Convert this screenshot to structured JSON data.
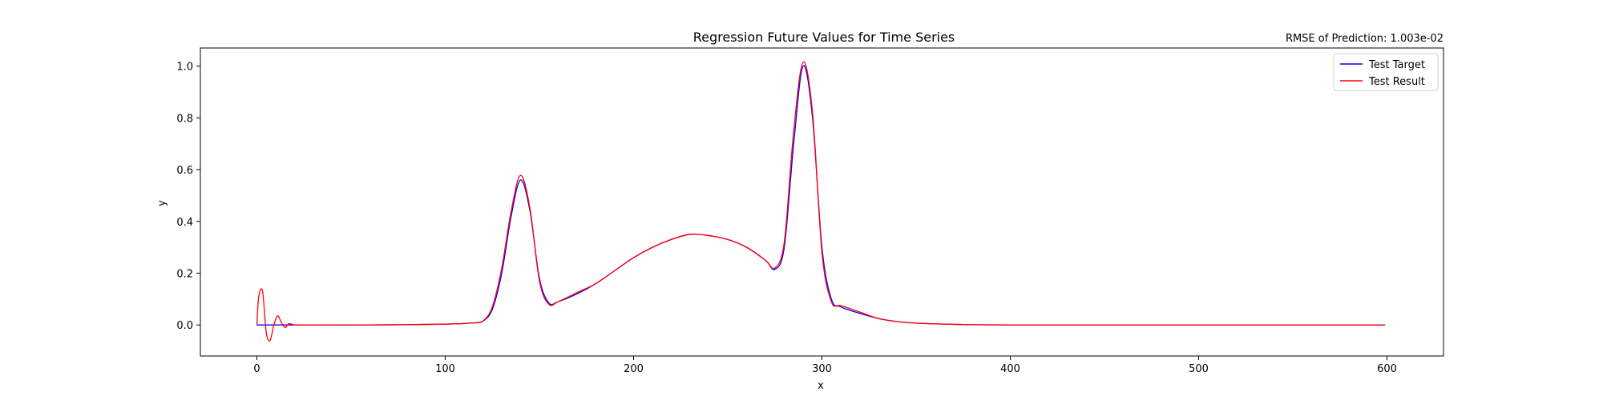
{
  "chart_data": {
    "type": "line",
    "title": "Regression Future Values for Time Series",
    "annotation": "RMSE of Prediction: 1.003e-02",
    "xlabel": "x",
    "ylabel": "y",
    "xlim": [
      -30,
      630
    ],
    "ylim": [
      -0.12,
      1.07
    ],
    "xticks": [
      0,
      100,
      200,
      300,
      400,
      500,
      600
    ],
    "yticks": [
      0.0,
      0.2,
      0.4,
      0.6,
      0.8,
      1.0
    ],
    "ytick_labels": [
      "0.0",
      "0.2",
      "0.4",
      "0.6",
      "0.8",
      "1.0"
    ],
    "grid": false,
    "legend": "top-right",
    "series": [
      {
        "name": "Test Target",
        "color": "#0000ff",
        "x": [
          0,
          20,
          60,
          100,
          115,
          120,
          125,
          130,
          135,
          140,
          145,
          150,
          155,
          160,
          170,
          180,
          190,
          200,
          210,
          220,
          230,
          240,
          250,
          260,
          270,
          275,
          280,
          285,
          290,
          295,
          300,
          305,
          310,
          320,
          330,
          340,
          350,
          360,
          380,
          400,
          450,
          500,
          550,
          599
        ],
        "y": [
          0.0,
          0.0,
          0.0,
          0.003,
          0.008,
          0.015,
          0.06,
          0.2,
          0.42,
          0.56,
          0.44,
          0.18,
          0.085,
          0.09,
          0.12,
          0.16,
          0.21,
          0.26,
          0.3,
          0.33,
          0.35,
          0.345,
          0.33,
          0.3,
          0.25,
          0.215,
          0.3,
          0.7,
          1.0,
          0.8,
          0.3,
          0.1,
          0.07,
          0.045,
          0.025,
          0.013,
          0.007,
          0.004,
          0.001,
          0.0,
          0.0,
          0.0,
          0.0,
          0.0
        ]
      },
      {
        "name": "Test Result",
        "color": "#ff0000",
        "x": [
          0,
          1,
          3,
          5,
          7,
          9,
          11,
          13,
          15,
          17,
          20,
          25,
          60,
          100,
          115,
          120,
          125,
          130,
          135,
          140,
          145,
          150,
          155,
          160,
          170,
          180,
          190,
          200,
          210,
          220,
          230,
          240,
          250,
          260,
          270,
          275,
          280,
          285,
          290,
          295,
          300,
          305,
          310,
          320,
          330,
          340,
          350,
          360,
          380,
          400,
          450,
          500,
          550,
          599
        ],
        "y": [
          0.0,
          0.11,
          0.13,
          -0.03,
          -0.06,
          0.0,
          0.035,
          0.01,
          -0.01,
          0.005,
          0.0,
          0.0,
          0.0,
          0.003,
          0.008,
          0.015,
          0.07,
          0.22,
          0.44,
          0.578,
          0.45,
          0.17,
          0.08,
          0.09,
          0.125,
          0.16,
          0.21,
          0.26,
          0.3,
          0.33,
          0.35,
          0.345,
          0.33,
          0.3,
          0.25,
          0.22,
          0.32,
          0.75,
          1.015,
          0.82,
          0.28,
          0.09,
          0.075,
          0.05,
          0.025,
          0.013,
          0.007,
          0.004,
          0.001,
          0.0,
          0.0,
          0.0,
          0.0,
          0.0
        ]
      }
    ]
  }
}
